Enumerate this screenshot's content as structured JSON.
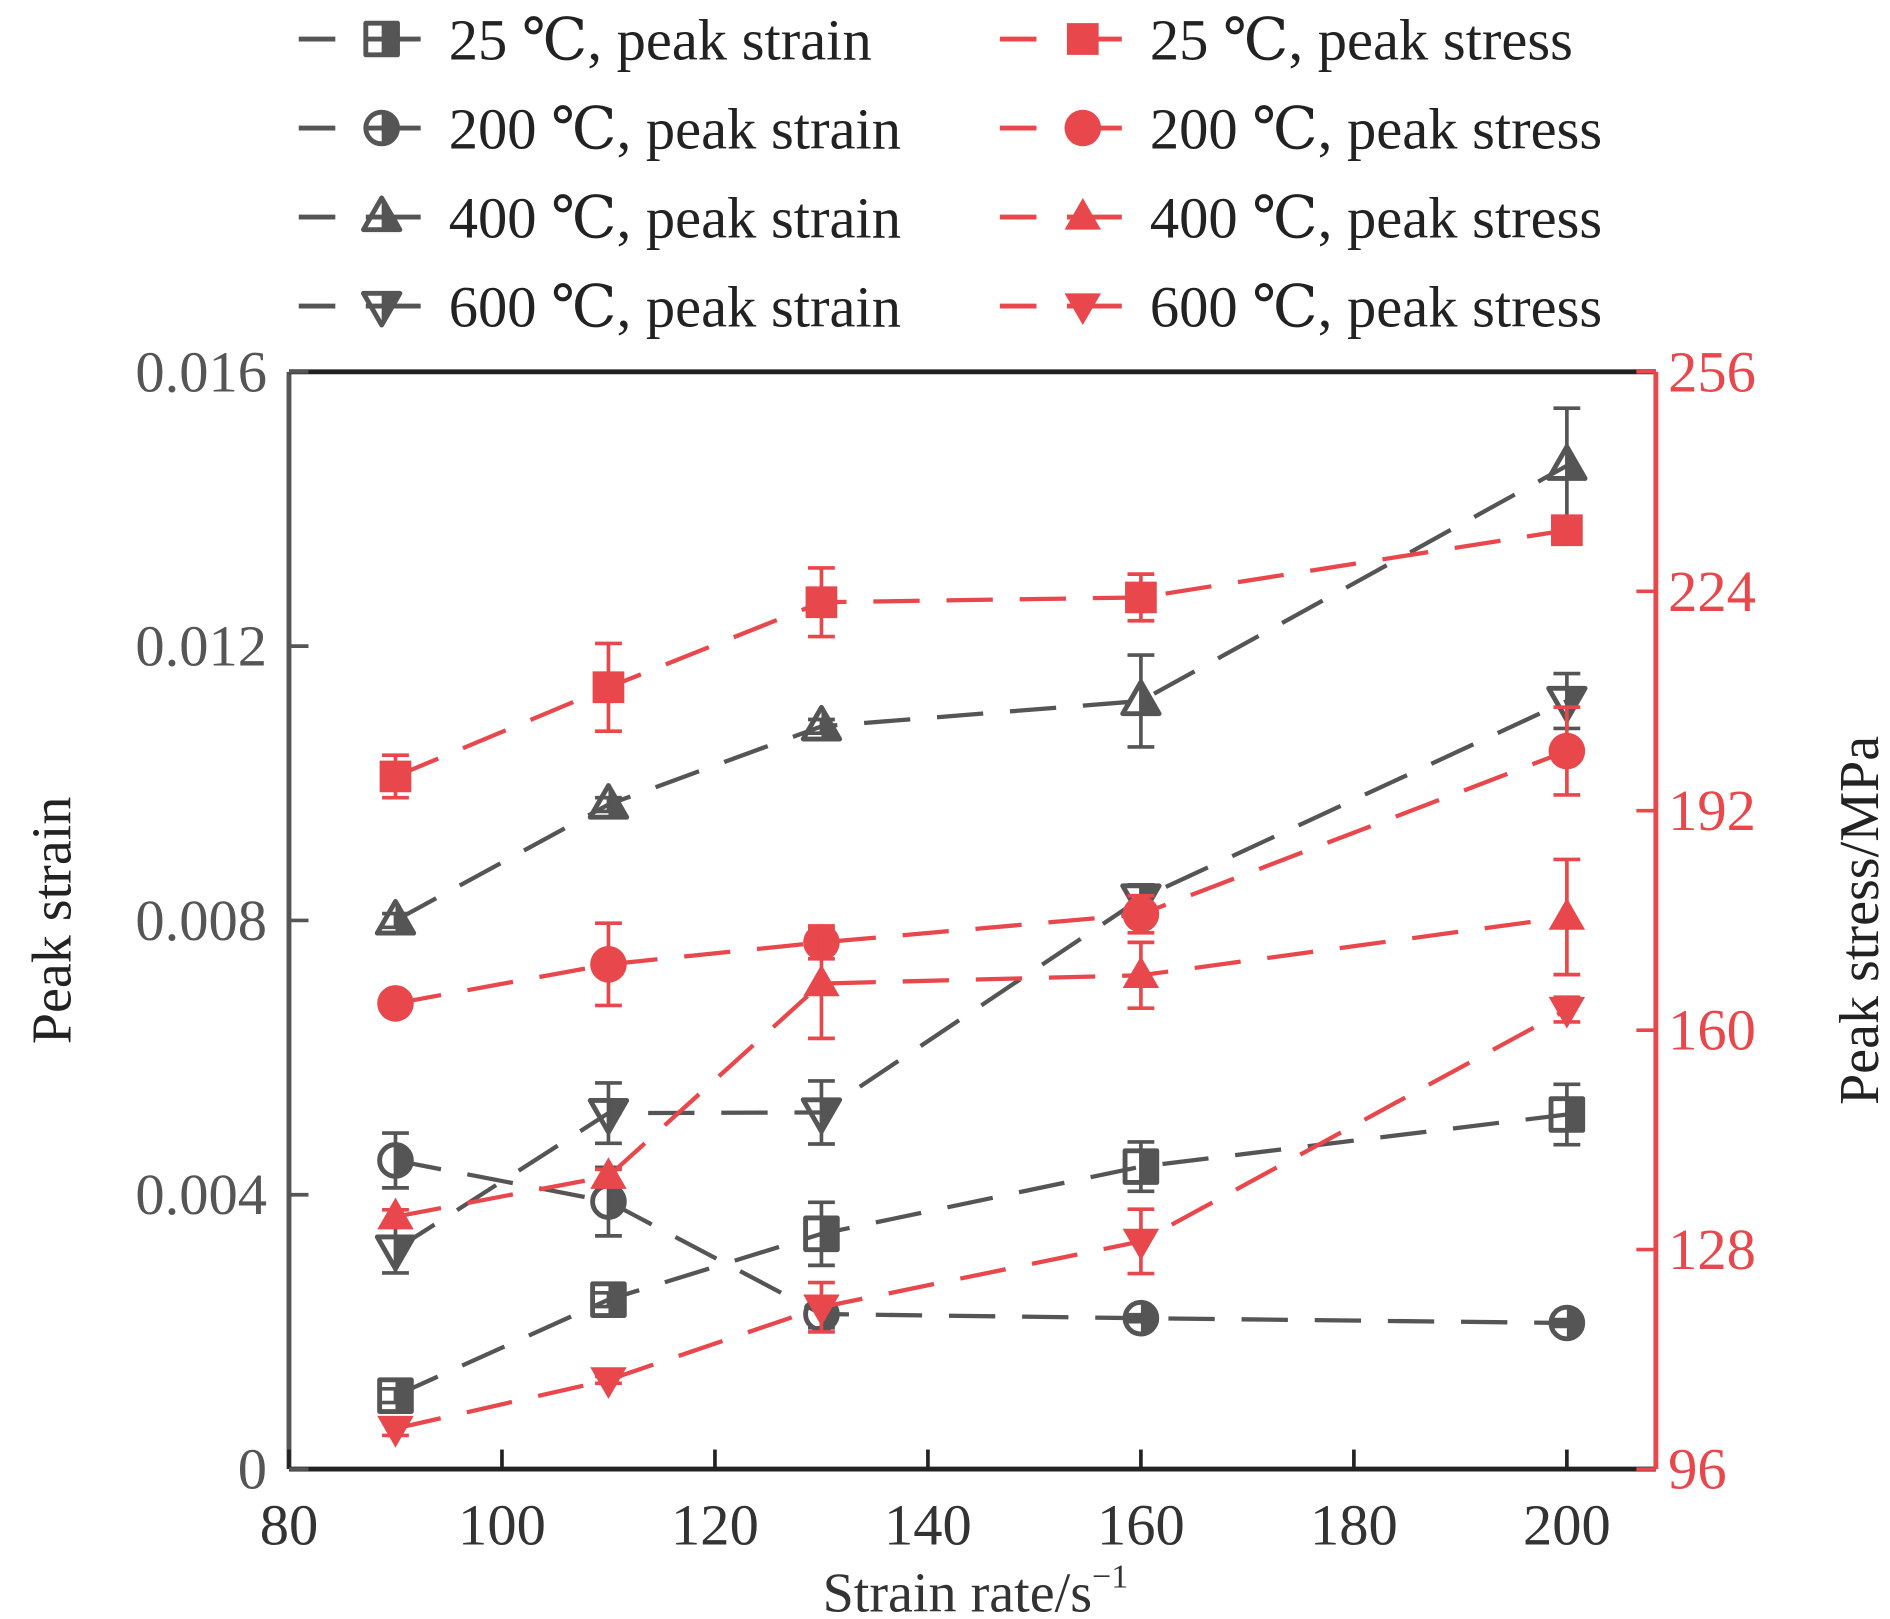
{
  "chart_data": {
    "type": "line",
    "xlabel": "Strain rate/s",
    "xlabel_sup": "−1",
    "ylabel": "Peak strain",
    "y2label": "Peak stress/MPa",
    "xlim": [
      80,
      210
    ],
    "ylim": [
      0,
      0.016
    ],
    "y2lim": [
      96,
      256
    ],
    "xticks": [
      80,
      100,
      120,
      140,
      160,
      180,
      200
    ],
    "yticks": [
      "0",
      "0.004",
      "0.008",
      "0.012",
      "0.016"
    ],
    "y2ticks": [
      96,
      128,
      160,
      192,
      224,
      256
    ],
    "grid": false,
    "legend_position": "top",
    "colors": {
      "strain": "#555555",
      "stress": "#e8474c"
    },
    "x": [
      90,
      110,
      130,
      160,
      200
    ],
    "series": [
      {
        "name": "25 ℃, peak strain",
        "axis": "left",
        "marker": "square-half",
        "values": [
          0.00107,
          0.00247,
          0.00343,
          0.00441,
          0.00517
        ],
        "errors": [
          0.0001,
          0.0001,
          0.00046,
          0.00036,
          0.00044
        ]
      },
      {
        "name": "200 ℃, peak strain",
        "axis": "left",
        "marker": "circle-half",
        "values": [
          0.0045,
          0.0039,
          0.00226,
          0.0022,
          0.00213
        ],
        "errors": [
          0.0004,
          0.0005,
          0.0002,
          5e-05,
          5e-05
        ]
      },
      {
        "name": "400 ℃, peak strain",
        "axis": "left",
        "marker": "triangle-up-half",
        "values": [
          0.008,
          0.00969,
          0.01083,
          0.0112,
          0.01463
        ],
        "errors": [
          0.0001,
          0.0001,
          0.0001,
          0.00067,
          0.00084
        ]
      },
      {
        "name": "600 ℃, peak strain",
        "axis": "left",
        "marker": "triangle-down-half",
        "values": [
          0.0032,
          0.00519,
          0.0052,
          0.00832,
          0.0112
        ],
        "errors": [
          0.00034,
          0.00044,
          0.00046,
          0.0002,
          0.0004
        ]
      },
      {
        "name": "25 ℃, peak stress",
        "axis": "right",
        "marker": "square",
        "values": [
          197,
          210,
          222.4,
          223.1,
          232.9
        ],
        "errors": [
          3.1,
          6.4,
          5,
          3.4,
          1
        ]
      },
      {
        "name": "200 ℃, peak stress",
        "axis": "right",
        "marker": "circle",
        "values": [
          163.9,
          169.6,
          172.8,
          176.9,
          200.7
        ],
        "errors": [
          1,
          6,
          2.4,
          2.7,
          6.4
        ]
      },
      {
        "name": "400 ℃, peak stress",
        "axis": "right",
        "marker": "triangle-up",
        "values": [
          132.8,
          138.7,
          166.8,
          168,
          176.5
        ],
        "errors": [
          1,
          1,
          8,
          4.8,
          8.4
        ]
      },
      {
        "name": "600 ℃, peak stress",
        "axis": "right",
        "marker": "triangle-down",
        "values": [
          101.9,
          109,
          119.6,
          129.2,
          163
        ],
        "errors": [
          1,
          0.5,
          3.6,
          4.7,
          1.8
        ]
      }
    ]
  }
}
